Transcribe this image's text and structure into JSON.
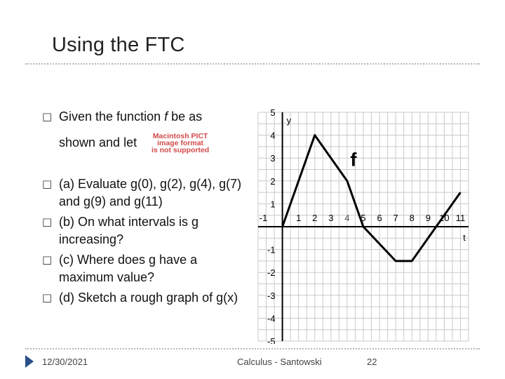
{
  "slide": {
    "title": "Using the FTC",
    "bullets": [
      {
        "line1": "Given the function ",
        "italic": "f",
        "line1b": " be as",
        "line2": "shown and let"
      },
      {
        "text": "(a) Evaluate g(0), g(2), g(4), g(7) and g(9) and g(11)"
      },
      {
        "text": "(b) On what intervals is g increasing?"
      },
      {
        "text": "(c) Where does g have a maximum value?"
      },
      {
        "text": "(d) Sketch a rough graph of g(x)"
      }
    ],
    "bullet_icon": "box-bullet-icon",
    "pict_placeholder": [
      "Macintosh PICT",
      "image format",
      "is not supported"
    ]
  },
  "footer": {
    "date": "12/30/2021",
    "course": "Calculus - Santowski",
    "page": "22",
    "accent": "#2a4f8a"
  },
  "chart_data": {
    "type": "line",
    "function_label": "f",
    "xlabel": "t",
    "ylabel": "y",
    "x_ticks": [
      "-1",
      "1",
      "2",
      "3",
      "4",
      "5",
      "6",
      "7",
      "8",
      "9",
      "10",
      "11"
    ],
    "y_ticks": [
      "5",
      "4",
      "3",
      "2",
      "1",
      "-1",
      "-2",
      "-3",
      "-4",
      "-5"
    ],
    "xlim": [
      -1,
      11
    ],
    "ylim": [
      -5,
      5
    ],
    "grid": true,
    "series": [
      {
        "x": [
          0,
          2,
          4,
          5,
          7,
          8,
          11
        ],
        "y": [
          0,
          4,
          2,
          0,
          -1.5,
          -1.5,
          1.5
        ],
        "color": "#000000"
      }
    ]
  }
}
